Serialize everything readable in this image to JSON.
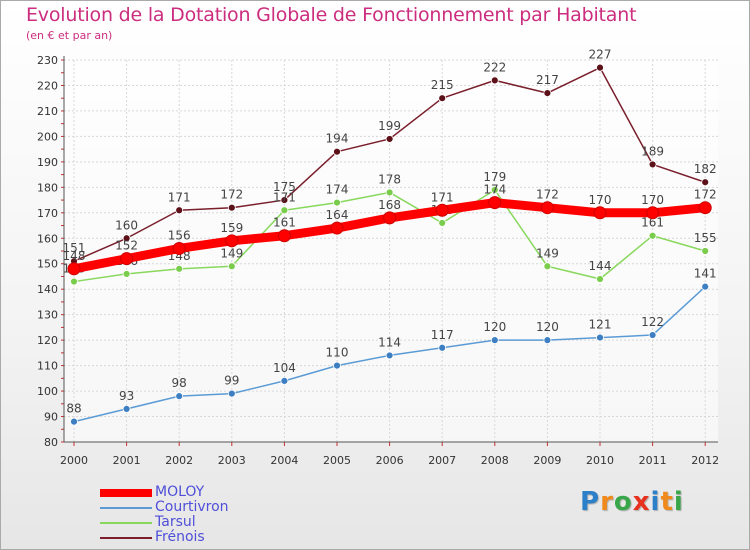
{
  "title": "Evolution de la Dotation Globale de Fonctionnement par Habitant",
  "subtitle": "(en € et par an)",
  "logo": {
    "text": "Proxiti",
    "letters": [
      "P",
      "r",
      "o",
      "x",
      "i",
      "t",
      "i"
    ],
    "colors": [
      "#2c7fc9",
      "#f08a1c",
      "#3aa64a",
      "#e8321f",
      "#2c7fc9",
      "#f08a1c",
      "#3aa64a"
    ]
  },
  "chart_data": {
    "type": "line",
    "title": "Evolution de la Dotation Globale de Fonctionnement par Habitant",
    "subtitle": "(en € et par an)",
    "xlabel": "",
    "ylabel": "",
    "categories": [
      "2000",
      "2001",
      "2002",
      "2003",
      "2004",
      "2005",
      "2006",
      "2007",
      "2008",
      "2009",
      "2010",
      "2011",
      "2012"
    ],
    "ylim": [
      80,
      230
    ],
    "yticks": [
      80,
      90,
      100,
      110,
      120,
      130,
      140,
      150,
      160,
      170,
      180,
      190,
      200,
      210,
      220,
      230
    ],
    "grid": true,
    "legend_position": "bottom-left",
    "series": [
      {
        "name": "Frénois",
        "color": "#7a1f2b",
        "marker": "#5c1018",
        "values": [
          151,
          160,
          171,
          172,
          175,
          194,
          199,
          215,
          222,
          217,
          227,
          189,
          182
        ]
      },
      {
        "name": "Tarsul",
        "color": "#88d85c",
        "marker": "#7acc4c",
        "values": [
          143,
          146,
          148,
          149,
          171,
          174,
          178,
          166,
          179,
          149,
          144,
          161,
          155
        ]
      },
      {
        "name": "Courtivron",
        "color": "#5b9bd5",
        "marker": "#3d7fc2",
        "values": [
          88,
          93,
          98,
          99,
          104,
          110,
          114,
          117,
          120,
          120,
          121,
          122,
          141
        ]
      },
      {
        "name": "MOLOY",
        "color": "#ff0000",
        "marker": "#ff0000",
        "values": [
          148,
          152,
          156,
          159,
          161,
          164,
          168,
          171,
          174,
          172,
          170,
          170,
          172
        ]
      }
    ],
    "legend": [
      "MOLOY",
      "Courtivron",
      "Tarsul",
      "Frénois"
    ]
  }
}
